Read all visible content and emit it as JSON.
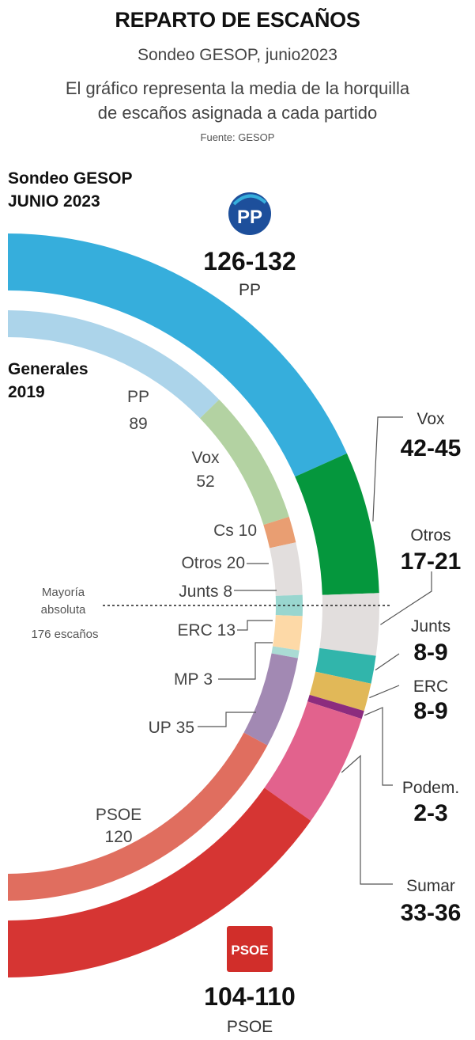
{
  "title": "REPARTO DE ESCAÑOS",
  "subtitle": "Sondeo GESOP, junio2023",
  "description_line1": "El gráfico representa la media de la horquilla",
  "description_line2": "de escaños asignada a cada partido",
  "source": "Fuente: GESOP",
  "outer_ring_label_line1": "Sondeo GESOP",
  "outer_ring_label_line2": "JUNIO 2023",
  "inner_ring_label_line1": "Generales",
  "inner_ring_label_line2": "2019",
  "majority": {
    "line1": "Mayoría",
    "line2": "absoluta",
    "line3": "176 escaños"
  },
  "pp_logo_text": "PP",
  "psoe_logo_text": "PSOE",
  "colors": {
    "PP": "#36aedc",
    "Vox": "#05973d",
    "Otros": "#e2dedd",
    "Junts": "#31b5ab",
    "ERC": "#e1b858",
    "Podem": "#8c2c7e",
    "Sumar": "#e2628d",
    "PSOE": "#d63533",
    "PP_2019": "#acd4ea",
    "Vox_2019": "#b3d2a2",
    "Cs_2019": "#e99e72",
    "Otros_2019": "#e2dedd",
    "Junts_2019": "#99d6cf",
    "ERC_2019": "#fdd9a7",
    "MP_2019": "#aadbd4",
    "UP_2019": "#a289b3",
    "PSOE_2019": "#e06e5f"
  },
  "chart_data": [
    {
      "type": "pie",
      "title": "Sondeo GESOP JUNIO 2023",
      "series": [
        {
          "name": "PP",
          "range": "126-132",
          "value": 129
        },
        {
          "name": "Vox",
          "range": "42-45",
          "value": 43.5
        },
        {
          "name": "Otros",
          "range": "17-21",
          "value": 19
        },
        {
          "name": "Junts",
          "range": "8-9",
          "value": 8.5
        },
        {
          "name": "ERC",
          "range": "8-9",
          "value": 8.5
        },
        {
          "name": "Podem.",
          "range": "2-3",
          "value": 2.5
        },
        {
          "name": "Sumar",
          "range": "33-36",
          "value": 34.5
        },
        {
          "name": "PSOE",
          "range": "104-110",
          "value": 107
        }
      ]
    },
    {
      "type": "pie",
      "title": "Generales 2019",
      "series": [
        {
          "name": "PP",
          "value": 89
        },
        {
          "name": "Vox",
          "value": 52
        },
        {
          "name": "Cs",
          "value": 10
        },
        {
          "name": "Otros",
          "value": 20
        },
        {
          "name": "Junts",
          "value": 8
        },
        {
          "name": "ERC",
          "value": 13
        },
        {
          "name": "MP",
          "value": 3
        },
        {
          "name": "UP",
          "value": 35
        },
        {
          "name": "PSOE",
          "value": 120
        }
      ]
    }
  ]
}
